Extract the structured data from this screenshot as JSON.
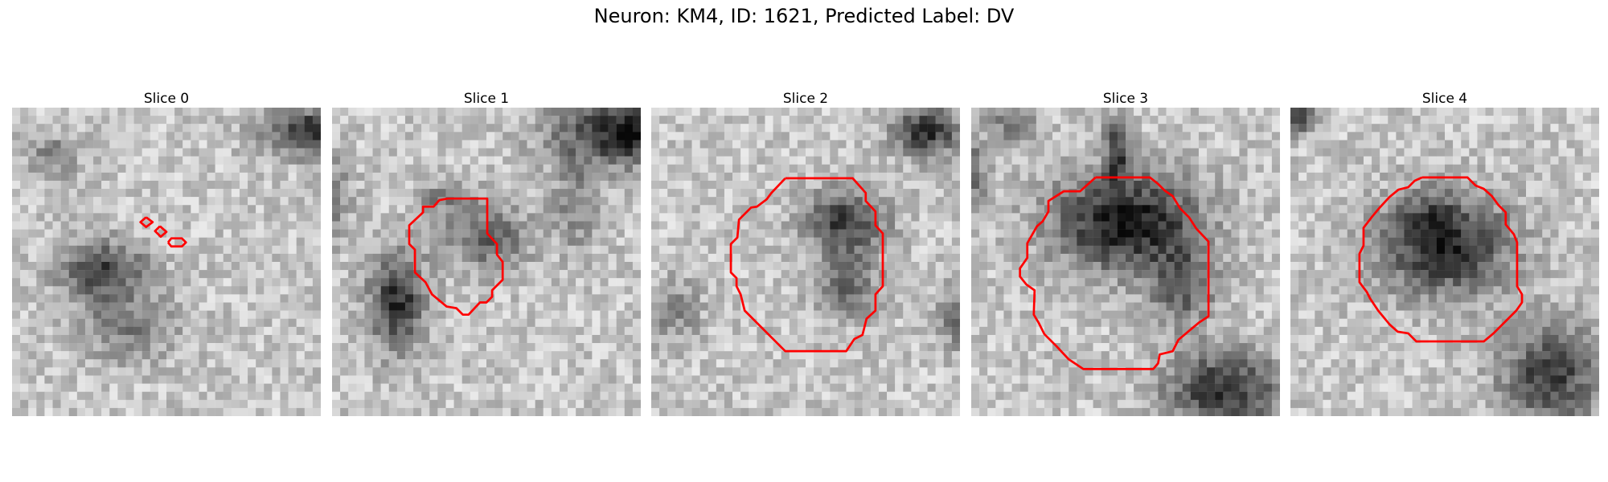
{
  "figure": {
    "title": "Neuron: KM4, ID: 1621, Predicted Label: DV"
  },
  "contour_color": "#ff0000",
  "panels": [
    {
      "title": "Slice 0",
      "contours": [
        [
          [
            16.5,
            13.5
          ],
          [
            17.3,
            14.1
          ],
          [
            16.5,
            14.7
          ],
          [
            15.8,
            14.1
          ],
          [
            16.5,
            13.5
          ]
        ],
        [
          [
            18.2,
            14.6
          ],
          [
            19.0,
            15.3
          ],
          [
            18.3,
            15.9
          ],
          [
            17.6,
            15.2
          ],
          [
            18.2,
            14.6
          ]
        ],
        [
          [
            19.2,
            16.6
          ],
          [
            19.6,
            16.1
          ],
          [
            20.9,
            16.1
          ],
          [
            21.4,
            16.6
          ],
          [
            20.9,
            17.1
          ],
          [
            19.6,
            17.1
          ],
          [
            19.2,
            16.6
          ]
        ]
      ]
    },
    {
      "title": "Slice 1",
      "contours": [
        [
          [
            14.2,
            11.2
          ],
          [
            19.1,
            11.2
          ],
          [
            19.1,
            15.5
          ],
          [
            20.3,
            16.8
          ],
          [
            20.3,
            18.1
          ],
          [
            21.0,
            19.0
          ],
          [
            21.0,
            21.2
          ],
          [
            19.7,
            22.5
          ],
          [
            19.7,
            23.3
          ],
          [
            19.0,
            24.0
          ],
          [
            18.2,
            24.0
          ],
          [
            16.8,
            25.5
          ],
          [
            16.1,
            25.5
          ],
          [
            15.3,
            24.7
          ],
          [
            14.1,
            24.5
          ],
          [
            12.3,
            23.0
          ],
          [
            11.5,
            21.5
          ],
          [
            10.2,
            20.3
          ],
          [
            10.2,
            17.5
          ],
          [
            9.5,
            16.8
          ],
          [
            9.5,
            14.5
          ],
          [
            11.2,
            12.9
          ],
          [
            11.2,
            12.2
          ],
          [
            12.5,
            12.2
          ],
          [
            13.2,
            11.4
          ],
          [
            14.2,
            11.2
          ]
        ]
      ]
    },
    {
      "title": "Slice 2",
      "contours": [
        [
          [
            16.5,
            8.7
          ],
          [
            24.8,
            8.7
          ],
          [
            26.4,
            10.5
          ],
          [
            26.4,
            11.5
          ],
          [
            27.6,
            12.8
          ],
          [
            27.6,
            14.5
          ],
          [
            28.5,
            15.5
          ],
          [
            28.5,
            22.0
          ],
          [
            27.6,
            23.0
          ],
          [
            27.6,
            25.0
          ],
          [
            26.5,
            26.0
          ],
          [
            26.0,
            28.0
          ],
          [
            25.0,
            28.5
          ],
          [
            24.0,
            30.0
          ],
          [
            16.5,
            30.0
          ],
          [
            13.0,
            26.5
          ],
          [
            11.5,
            25.0
          ],
          [
            11.0,
            23.0
          ],
          [
            10.5,
            22.0
          ],
          [
            10.5,
            21.0
          ],
          [
            9.8,
            20.3
          ],
          [
            9.8,
            16.8
          ],
          [
            10.6,
            16.0
          ],
          [
            10.8,
            13.8
          ],
          [
            11.8,
            12.8
          ],
          [
            12.3,
            12.3
          ],
          [
            13.0,
            12.2
          ],
          [
            14.2,
            11.3
          ],
          [
            14.8,
            10.5
          ],
          [
            16.5,
            8.7
          ]
        ]
      ]
    },
    {
      "title": "Slice 3",
      "contours": [
        [
          [
            15.3,
            8.6
          ],
          [
            22.0,
            8.6
          ],
          [
            23.0,
            9.4
          ],
          [
            23.8,
            10.2
          ],
          [
            24.8,
            10.9
          ],
          [
            25.7,
            12.4
          ],
          [
            26.8,
            13.5
          ],
          [
            27.7,
            14.9
          ],
          [
            29.2,
            16.5
          ],
          [
            29.2,
            25.7
          ],
          [
            28.0,
            26.5
          ],
          [
            26.8,
            27.5
          ],
          [
            25.5,
            28.6
          ],
          [
            24.8,
            30.0
          ],
          [
            23.2,
            30.4
          ],
          [
            23.0,
            31.5
          ],
          [
            22.4,
            32.2
          ],
          [
            13.8,
            32.2
          ],
          [
            12.0,
            31.0
          ],
          [
            10.5,
            29.4
          ],
          [
            9.0,
            27.9
          ],
          [
            8.3,
            26.5
          ],
          [
            7.7,
            25.5
          ],
          [
            7.8,
            22.5
          ],
          [
            6.8,
            21.8
          ],
          [
            6.0,
            20.8
          ],
          [
            6.0,
            19.8
          ],
          [
            6.9,
            18.5
          ],
          [
            6.9,
            16.7
          ],
          [
            8.1,
            14.6
          ],
          [
            8.8,
            14.0
          ],
          [
            9.5,
            12.8
          ],
          [
            9.5,
            11.5
          ],
          [
            11.4,
            10.3
          ],
          [
            13.4,
            10.3
          ],
          [
            15.3,
            8.6
          ]
        ]
      ]
    },
    {
      "title": "Slice 4",
      "contours": [
        [
          [
            16.2,
            8.6
          ],
          [
            21.8,
            8.6
          ],
          [
            22.8,
            9.6
          ],
          [
            23.8,
            10.0
          ],
          [
            24.8,
            10.9
          ],
          [
            25.6,
            12.0
          ],
          [
            26.5,
            12.9
          ],
          [
            26.5,
            14.4
          ],
          [
            27.5,
            15.6
          ],
          [
            27.9,
            16.6
          ],
          [
            27.9,
            22.0
          ],
          [
            28.5,
            23.0
          ],
          [
            28.5,
            24.0
          ],
          [
            27.8,
            25.0
          ],
          [
            26.8,
            26.0
          ],
          [
            26.0,
            26.8
          ],
          [
            25.0,
            27.8
          ],
          [
            23.8,
            28.8
          ],
          [
            15.5,
            28.8
          ],
          [
            14.5,
            27.8
          ],
          [
            13.2,
            27.6
          ],
          [
            12.2,
            26.7
          ],
          [
            10.8,
            25.0
          ],
          [
            9.8,
            23.5
          ],
          [
            9.4,
            22.7
          ],
          [
            8.5,
            21.5
          ],
          [
            8.5,
            18.0
          ],
          [
            9.0,
            17.0
          ],
          [
            9.0,
            14.8
          ],
          [
            10.0,
            13.5
          ],
          [
            11.0,
            12.3
          ],
          [
            12.2,
            11.0
          ],
          [
            13.3,
            10.1
          ],
          [
            14.5,
            9.8
          ],
          [
            15.3,
            9.0
          ],
          [
            16.2,
            8.6
          ]
        ]
      ]
    }
  ]
}
